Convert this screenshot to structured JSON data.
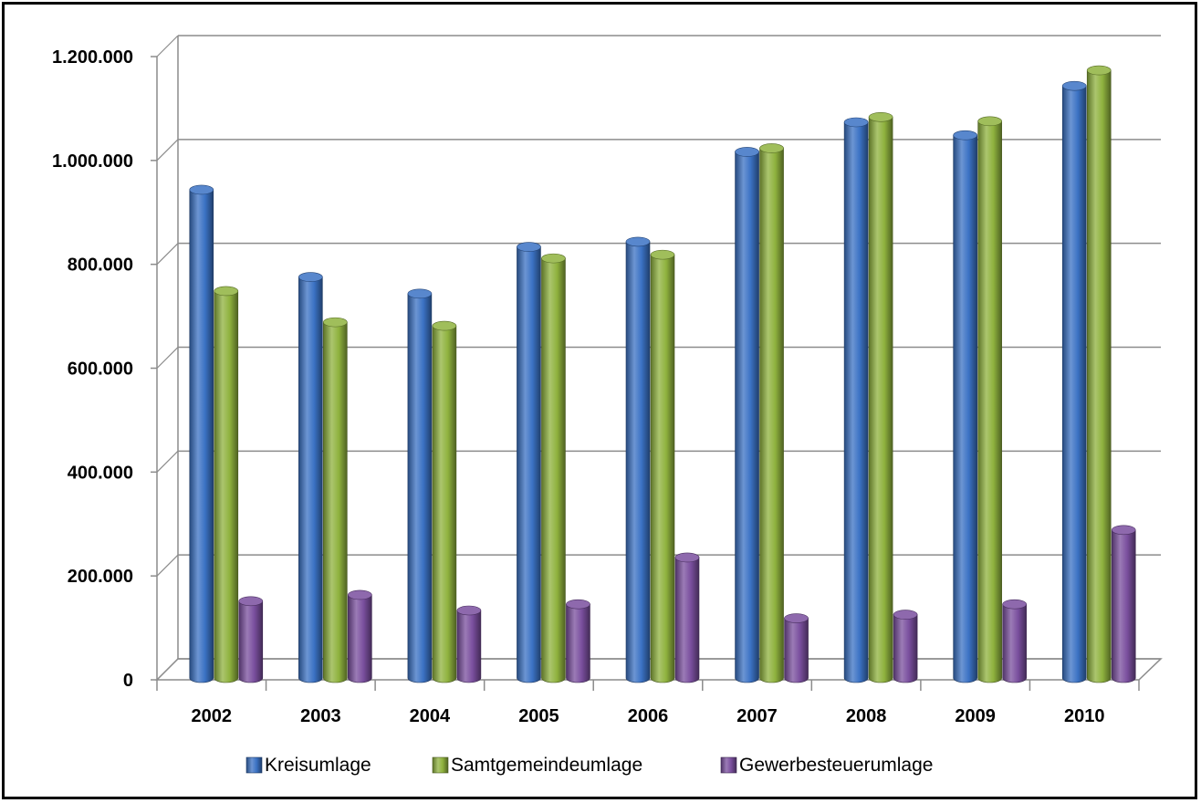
{
  "chart_data": {
    "type": "bar",
    "title": "",
    "xlabel": "",
    "ylabel": "",
    "categories": [
      "2002",
      "2003",
      "2004",
      "2005",
      "2006",
      "2007",
      "2008",
      "2009",
      "2010"
    ],
    "ylim": [
      0,
      1200000
    ],
    "yticks": [
      0,
      200000,
      400000,
      600000,
      800000,
      1000000,
      1200000
    ],
    "ytick_labels": [
      "0",
      "200.000",
      "400.000",
      "600.000",
      "800.000",
      "1.000.000",
      "1.200.000"
    ],
    "grid": true,
    "legend_position": "bottom",
    "series": [
      {
        "name": "Kreisumlage",
        "color": "#3b72c4",
        "values": [
          940000,
          772000,
          740000,
          830000,
          840000,
          1013000,
          1070000,
          1045000,
          1140000
        ]
      },
      {
        "name": "Samtgemeindeumlage",
        "color": "#8fb23e",
        "values": [
          745000,
          685000,
          678000,
          808000,
          815000,
          1020000,
          1080000,
          1072000,
          1170000
        ]
      },
      {
        "name": "Gewerbesteuerumlage",
        "color": "#7a4f9e",
        "values": [
          148000,
          160000,
          130000,
          142000,
          232000,
          115000,
          122000,
          142000,
          285000
        ]
      }
    ]
  }
}
